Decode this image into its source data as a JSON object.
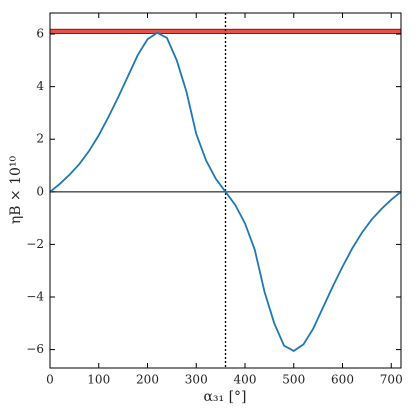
{
  "chart_data": {
    "type": "line",
    "x": [
      0,
      20,
      40,
      60,
      80,
      100,
      120,
      140,
      160,
      180,
      200,
      220,
      240,
      260,
      280,
      300,
      320,
      340,
      360,
      380,
      400,
      420,
      440,
      460,
      480,
      500,
      520,
      540,
      560,
      580,
      600,
      620,
      640,
      660,
      680,
      700,
      720
    ],
    "series": [
      {
        "color": "#1f77b4",
        "values": [
          0,
          0.3,
          0.65,
          1.05,
          1.55,
          2.15,
          2.85,
          3.6,
          4.4,
          5.2,
          5.8,
          6.05,
          5.85,
          5.0,
          3.8,
          2.2,
          1.2,
          0.5,
          0,
          -0.5,
          -1.2,
          -2.2,
          -3.8,
          -5.0,
          -5.85,
          -6.05,
          -5.8,
          -5.2,
          -4.4,
          -3.6,
          -2.85,
          -2.15,
          -1.55,
          -1.05,
          -0.65,
          -0.3,
          0
        ]
      }
    ],
    "band": {
      "lower": 6.02,
      "upper": 6.18,
      "color": "#e8504a"
    },
    "vline": 360,
    "hline": 0,
    "xlabel": "α₃₁ [°]",
    "ylabel": "ηB × 10¹⁰",
    "xlim": [
      0,
      720
    ],
    "ylim": [
      -6.7,
      6.8
    ],
    "xticks": [
      0,
      100,
      200,
      300,
      400,
      500,
      600,
      700
    ],
    "yticks": [
      {
        "value": -6,
        "label": "−6"
      },
      {
        "value": -4,
        "label": "−4"
      },
      {
        "value": -2,
        "label": "−2"
      },
      0,
      2,
      4,
      6
    ]
  }
}
